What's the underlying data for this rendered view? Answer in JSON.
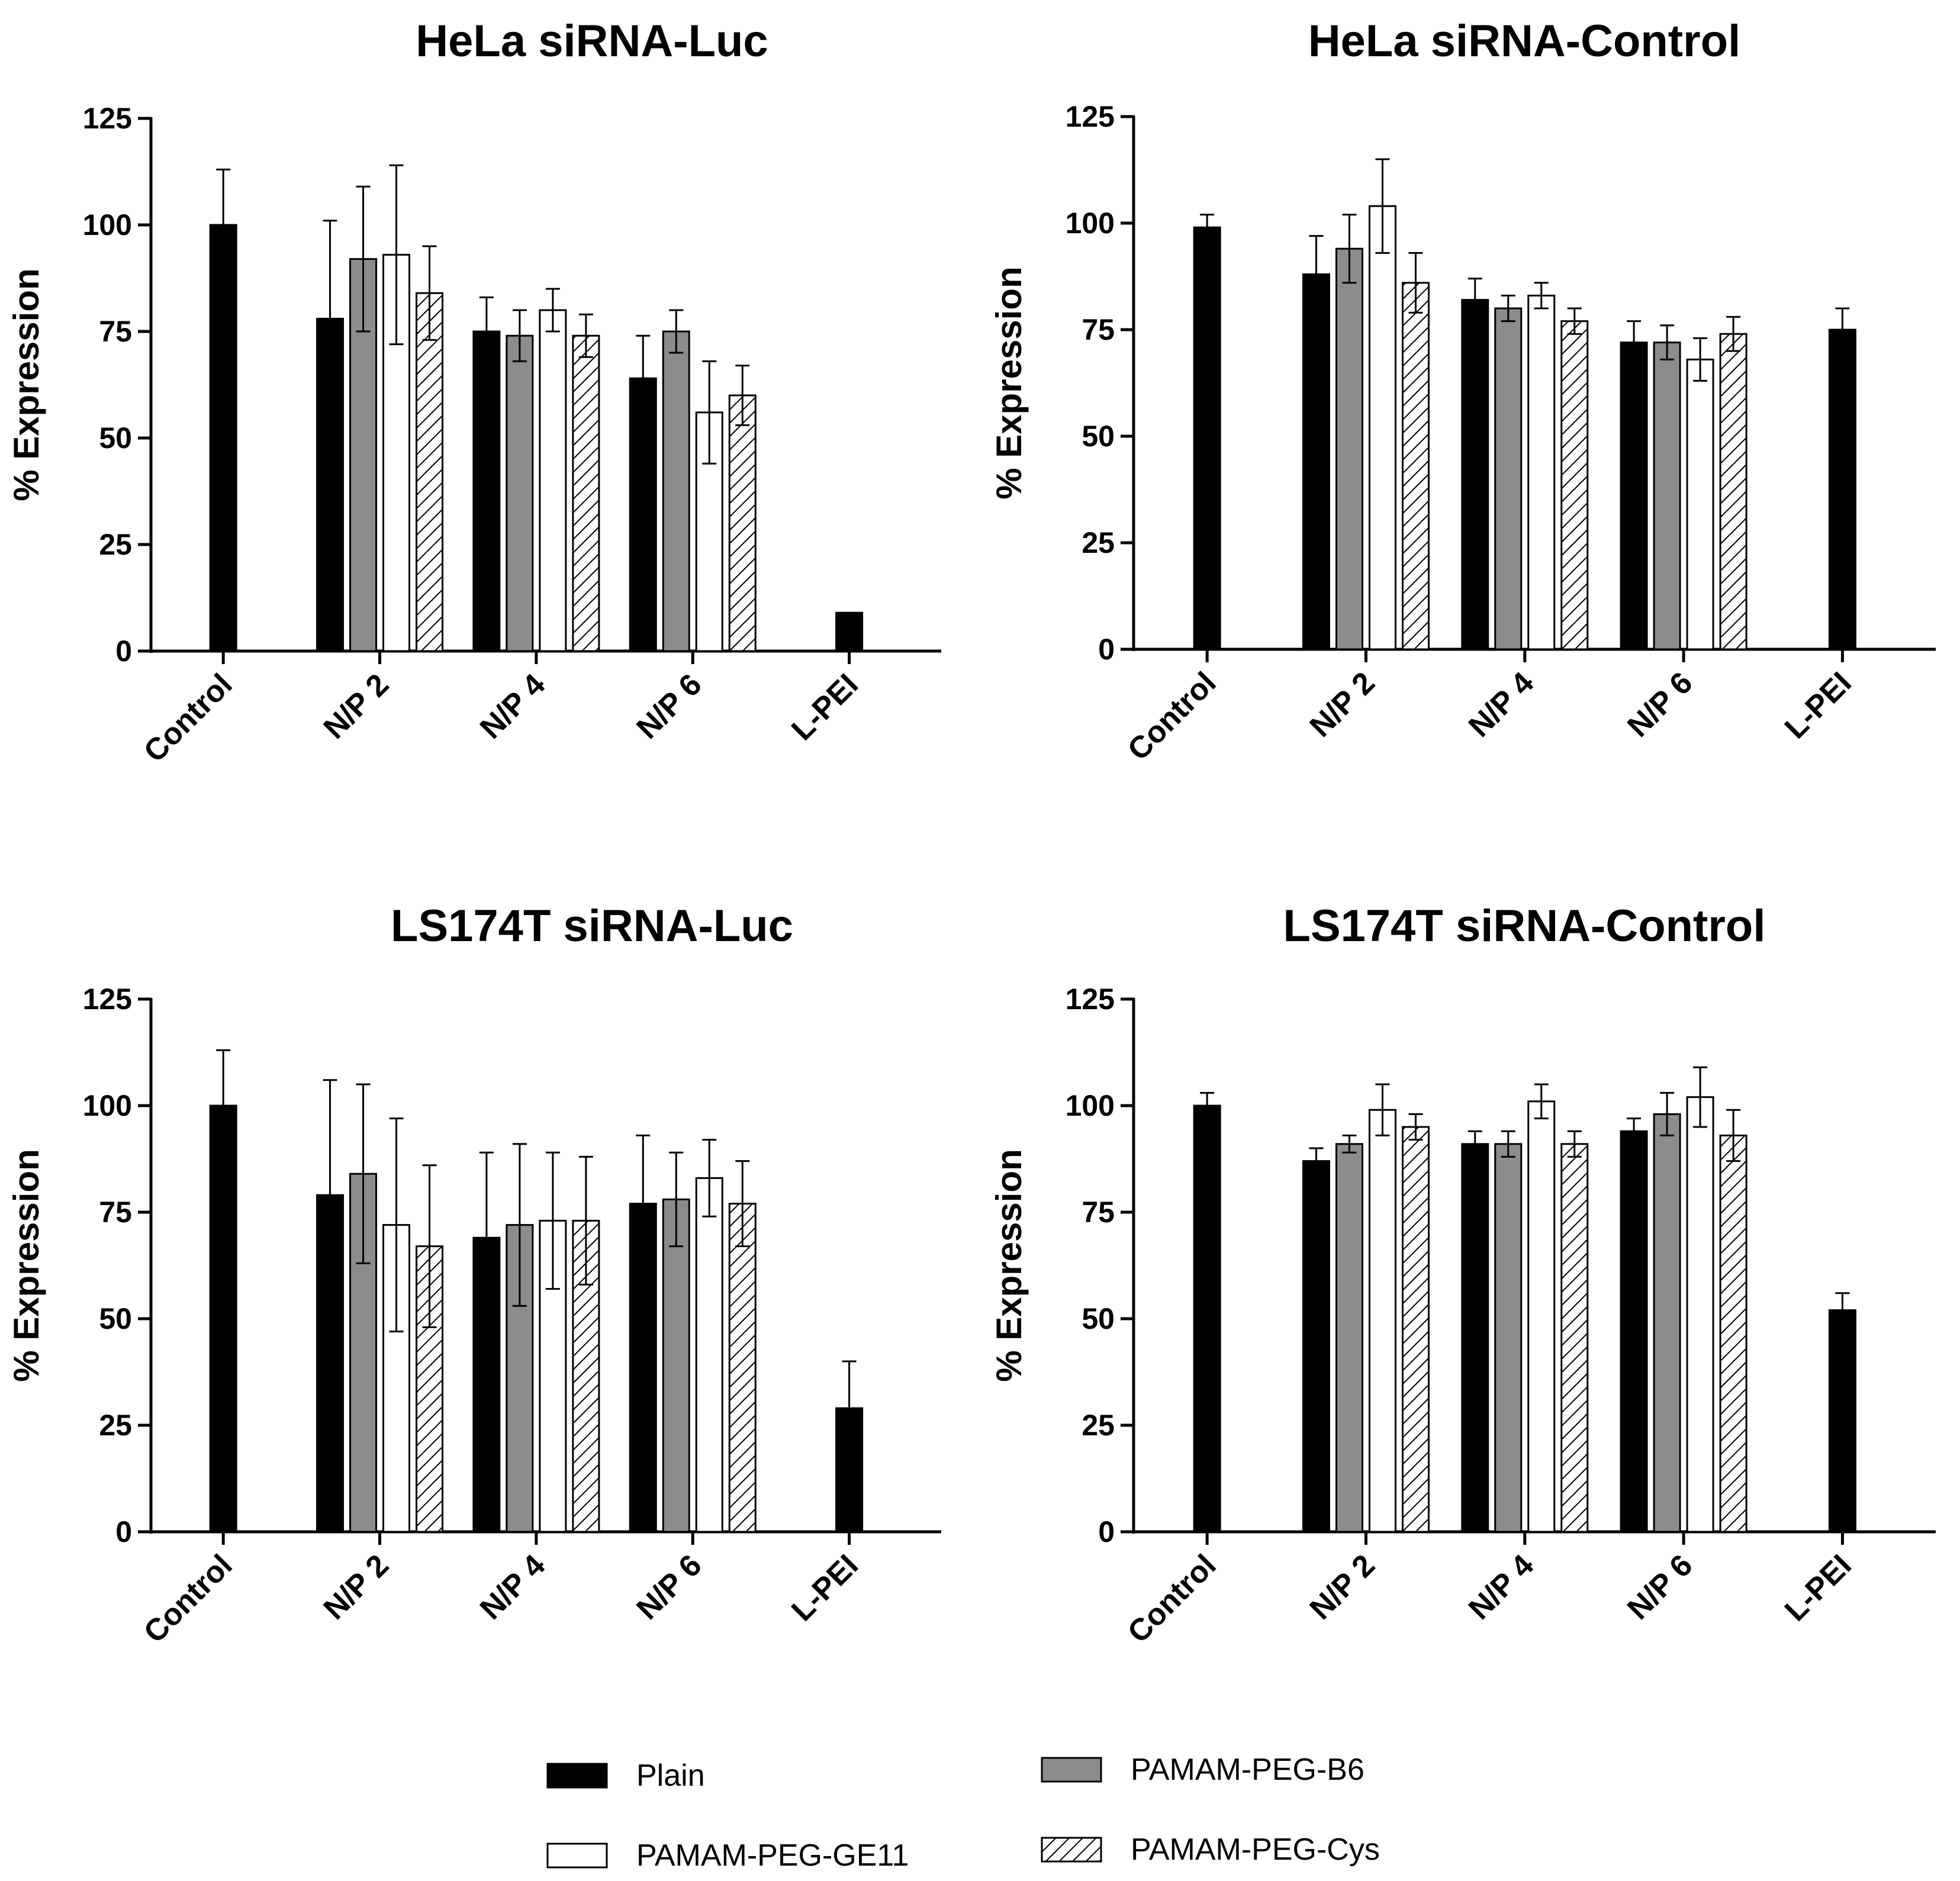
{
  "legend": [
    {
      "name": "Plain",
      "key": "plain"
    },
    {
      "name": "PAMAM-PEG-B6",
      "key": "b6"
    },
    {
      "name": "PAMAM-PEG-GE11",
      "key": "ge11"
    },
    {
      "name": "PAMAM-PEG-Cys",
      "key": "cys"
    }
  ],
  "series_styles": {
    "plain": {
      "fill": "#000000"
    },
    "b6": {
      "fill": "#8c8c8c"
    },
    "ge11": {
      "fill": "#ffffff"
    },
    "cys": {
      "fill": "hatch"
    }
  },
  "chart_data": [
    {
      "type": "bar",
      "title": "HeLa siRNA-Luc",
      "ylabel": "% Expression",
      "xlabel": "",
      "ylim": [
        0,
        125
      ],
      "yticks": [
        0,
        25,
        50,
        75,
        100,
        125
      ],
      "categories": [
        "Control",
        "N/P 2",
        "N/P 4",
        "N/P 6",
        "L-PEI"
      ],
      "groups": [
        {
          "category": "Control",
          "bars": [
            {
              "series": "Plain",
              "key": "plain",
              "value": 100,
              "err": 13
            }
          ]
        },
        {
          "category": "N/P 2",
          "bars": [
            {
              "series": "Plain",
              "key": "plain",
              "value": 78,
              "err": 23
            },
            {
              "series": "PAMAM-PEG-B6",
              "key": "b6",
              "value": 92,
              "err": 17
            },
            {
              "series": "PAMAM-PEG-GE11",
              "key": "ge11",
              "value": 93,
              "err": 21
            },
            {
              "series": "PAMAM-PEG-Cys",
              "key": "cys",
              "value": 84,
              "err": 11
            }
          ]
        },
        {
          "category": "N/P 4",
          "bars": [
            {
              "series": "Plain",
              "key": "plain",
              "value": 75,
              "err": 8
            },
            {
              "series": "PAMAM-PEG-B6",
              "key": "b6",
              "value": 74,
              "err": 6
            },
            {
              "series": "PAMAM-PEG-GE11",
              "key": "ge11",
              "value": 80,
              "err": 5
            },
            {
              "series": "PAMAM-PEG-Cys",
              "key": "cys",
              "value": 74,
              "err": 5
            }
          ]
        },
        {
          "category": "N/P 6",
          "bars": [
            {
              "series": "Plain",
              "key": "plain",
              "value": 64,
              "err": 10
            },
            {
              "series": "PAMAM-PEG-B6",
              "key": "b6",
              "value": 75,
              "err": 5
            },
            {
              "series": "PAMAM-PEG-GE11",
              "key": "ge11",
              "value": 56,
              "err": 12
            },
            {
              "series": "PAMAM-PEG-Cys",
              "key": "cys",
              "value": 60,
              "err": 7
            }
          ]
        },
        {
          "category": "L-PEI",
          "bars": [
            {
              "series": "Plain",
              "key": "plain",
              "value": 9,
              "err": 0
            }
          ]
        }
      ]
    },
    {
      "type": "bar",
      "title": "HeLa siRNA-Control",
      "ylabel": "% Expression",
      "xlabel": "",
      "ylim": [
        0,
        125
      ],
      "yticks": [
        0,
        25,
        50,
        75,
        100,
        125
      ],
      "categories": [
        "Control",
        "N/P 2",
        "N/P 4",
        "N/P 6",
        "L-PEI"
      ],
      "groups": [
        {
          "category": "Control",
          "bars": [
            {
              "series": "Plain",
              "key": "plain",
              "value": 99,
              "err": 3
            }
          ]
        },
        {
          "category": "N/P 2",
          "bars": [
            {
              "series": "Plain",
              "key": "plain",
              "value": 88,
              "err": 9
            },
            {
              "series": "PAMAM-PEG-B6",
              "key": "b6",
              "value": 94,
              "err": 8
            },
            {
              "series": "PAMAM-PEG-GE11",
              "key": "ge11",
              "value": 104,
              "err": 11
            },
            {
              "series": "PAMAM-PEG-Cys",
              "key": "cys",
              "value": 86,
              "err": 7
            }
          ]
        },
        {
          "category": "N/P 4",
          "bars": [
            {
              "series": "Plain",
              "key": "plain",
              "value": 82,
              "err": 5
            },
            {
              "series": "PAMAM-PEG-B6",
              "key": "b6",
              "value": 80,
              "err": 3
            },
            {
              "series": "PAMAM-PEG-GE11",
              "key": "ge11",
              "value": 83,
              "err": 3
            },
            {
              "series": "PAMAM-PEG-Cys",
              "key": "cys",
              "value": 77,
              "err": 3
            }
          ]
        },
        {
          "category": "N/P 6",
          "bars": [
            {
              "series": "Plain",
              "key": "plain",
              "value": 72,
              "err": 5
            },
            {
              "series": "PAMAM-PEG-B6",
              "key": "b6",
              "value": 72,
              "err": 4
            },
            {
              "series": "PAMAM-PEG-GE11",
              "key": "ge11",
              "value": 68,
              "err": 5
            },
            {
              "series": "PAMAM-PEG-Cys",
              "key": "cys",
              "value": 74,
              "err": 4
            }
          ]
        },
        {
          "category": "L-PEI",
          "bars": [
            {
              "series": "Plain",
              "key": "plain",
              "value": 75,
              "err": 5
            }
          ]
        }
      ]
    },
    {
      "type": "bar",
      "title": "LS174T  siRNA-Luc",
      "ylabel": "% Expression",
      "xlabel": "",
      "ylim": [
        0,
        125
      ],
      "yticks": [
        0,
        25,
        50,
        75,
        100,
        125
      ],
      "categories": [
        "Control",
        "N/P 2",
        "N/P 4",
        "N/P 6",
        "L-PEI"
      ],
      "groups": [
        {
          "category": "Control",
          "bars": [
            {
              "series": "Plain",
              "key": "plain",
              "value": 100,
              "err": 13
            }
          ]
        },
        {
          "category": "N/P 2",
          "bars": [
            {
              "series": "Plain",
              "key": "plain",
              "value": 79,
              "err": 27
            },
            {
              "series": "PAMAM-PEG-B6",
              "key": "b6",
              "value": 84,
              "err": 21
            },
            {
              "series": "PAMAM-PEG-GE11",
              "key": "ge11",
              "value": 72,
              "err": 25
            },
            {
              "series": "PAMAM-PEG-Cys",
              "key": "cys",
              "value": 67,
              "err": 19
            }
          ]
        },
        {
          "category": "N/P 4",
          "bars": [
            {
              "series": "Plain",
              "key": "plain",
              "value": 69,
              "err": 20
            },
            {
              "series": "PAMAM-PEG-B6",
              "key": "b6",
              "value": 72,
              "err": 19
            },
            {
              "series": "PAMAM-PEG-GE11",
              "key": "ge11",
              "value": 73,
              "err": 16
            },
            {
              "series": "PAMAM-PEG-Cys",
              "key": "cys",
              "value": 73,
              "err": 15
            }
          ]
        },
        {
          "category": "N/P 6",
          "bars": [
            {
              "series": "Plain",
              "key": "plain",
              "value": 77,
              "err": 16
            },
            {
              "series": "PAMAM-PEG-B6",
              "key": "b6",
              "value": 78,
              "err": 11
            },
            {
              "series": "PAMAM-PEG-GE11",
              "key": "ge11",
              "value": 83,
              "err": 9
            },
            {
              "series": "PAMAM-PEG-Cys",
              "key": "cys",
              "value": 77,
              "err": 10
            }
          ]
        },
        {
          "category": "L-PEI",
          "bars": [
            {
              "series": "Plain",
              "key": "plain",
              "value": 29,
              "err": 11
            }
          ]
        }
      ]
    },
    {
      "type": "bar",
      "title": "LS174T  siRNA-Control",
      "ylabel": "% Expression",
      "xlabel": "",
      "ylim": [
        0,
        125
      ],
      "yticks": [
        0,
        25,
        50,
        75,
        100,
        125
      ],
      "categories": [
        "Control",
        "N/P 2",
        "N/P 4",
        "N/P 6",
        "L-PEI"
      ],
      "groups": [
        {
          "category": "Control",
          "bars": [
            {
              "series": "Plain",
              "key": "plain",
              "value": 100,
              "err": 3
            }
          ]
        },
        {
          "category": "N/P 2",
          "bars": [
            {
              "series": "Plain",
              "key": "plain",
              "value": 87,
              "err": 3
            },
            {
              "series": "PAMAM-PEG-B6",
              "key": "b6",
              "value": 91,
              "err": 2
            },
            {
              "series": "PAMAM-PEG-GE11",
              "key": "ge11",
              "value": 99,
              "err": 6
            },
            {
              "series": "PAMAM-PEG-Cys",
              "key": "cys",
              "value": 95,
              "err": 3
            }
          ]
        },
        {
          "category": "N/P 4",
          "bars": [
            {
              "series": "Plain",
              "key": "plain",
              "value": 91,
              "err": 3
            },
            {
              "series": "PAMAM-PEG-B6",
              "key": "b6",
              "value": 91,
              "err": 3
            },
            {
              "series": "PAMAM-PEG-GE11",
              "key": "ge11",
              "value": 101,
              "err": 4
            },
            {
              "series": "PAMAM-PEG-Cys",
              "key": "cys",
              "value": 91,
              "err": 3
            }
          ]
        },
        {
          "category": "N/P 6",
          "bars": [
            {
              "series": "Plain",
              "key": "plain",
              "value": 94,
              "err": 3
            },
            {
              "series": "PAMAM-PEG-B6",
              "key": "b6",
              "value": 98,
              "err": 5
            },
            {
              "series": "PAMAM-PEG-GE11",
              "key": "ge11",
              "value": 102,
              "err": 7
            },
            {
              "series": "PAMAM-PEG-Cys",
              "key": "cys",
              "value": 93,
              "err": 6
            }
          ]
        },
        {
          "category": "L-PEI",
          "bars": [
            {
              "series": "Plain",
              "key": "plain",
              "value": 52,
              "err": 4
            }
          ]
        }
      ]
    }
  ]
}
